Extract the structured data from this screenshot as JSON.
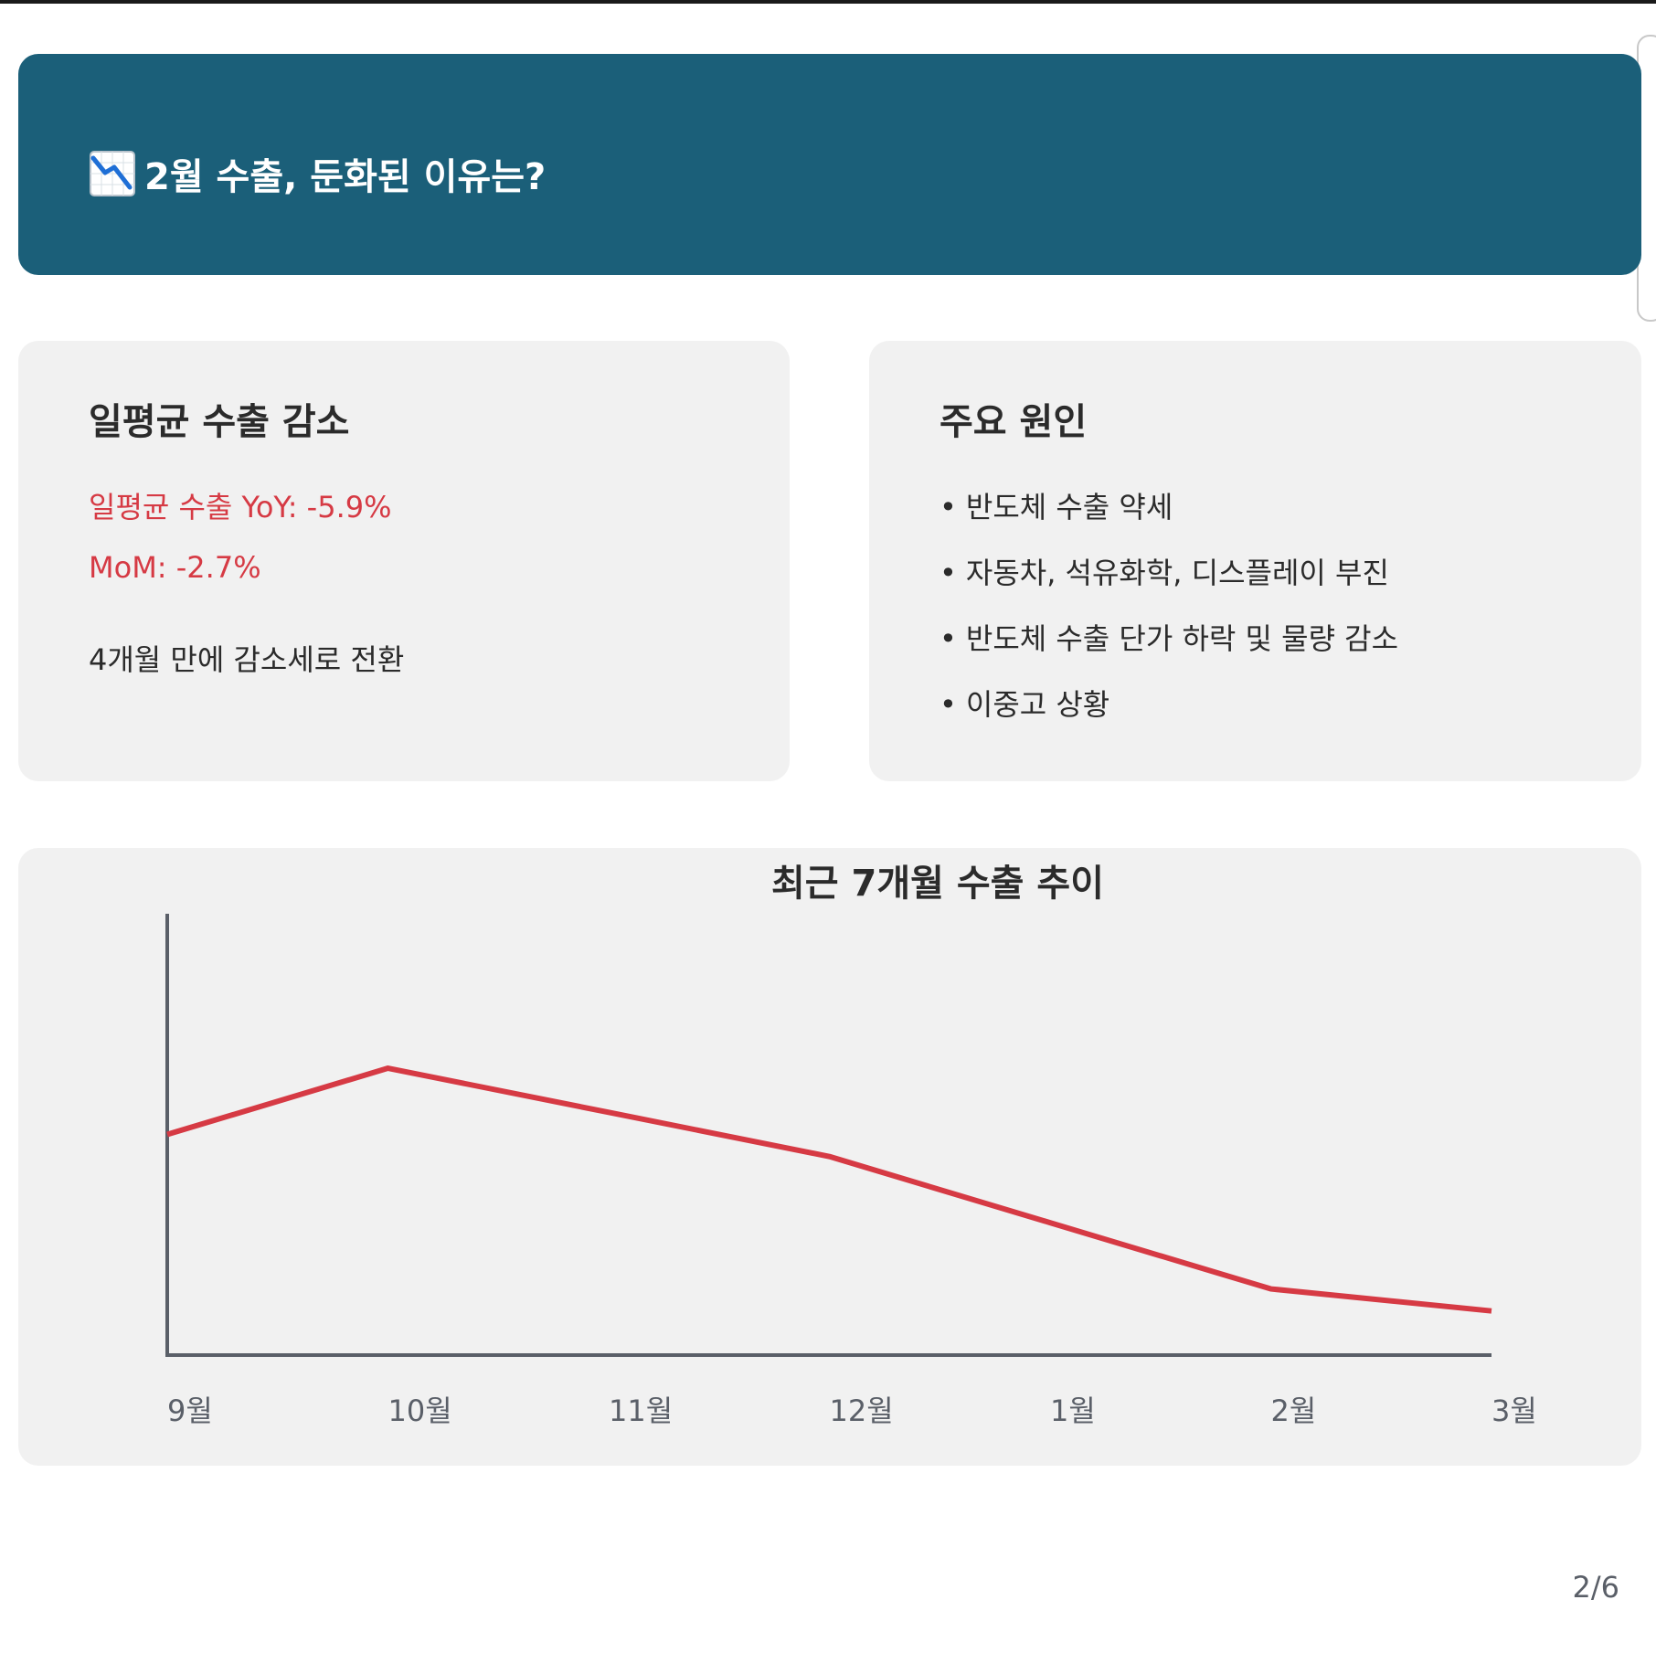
{
  "header": {
    "icon": "chart-decreasing-icon",
    "title": "2월 수출, 둔화된 이유는?"
  },
  "cards": {
    "daily_export": {
      "heading": "일평균 수출 감소",
      "yoy": "일평균 수출 YoY: -5.9%",
      "mom": "MoM: -2.7%",
      "note": "4개월 만에 감소세로 전환"
    },
    "causes": {
      "heading": "주요 원인",
      "bullet": "•",
      "items": [
        "반도체 수출 약세",
        "자동차, 석유화학, 디스플레이 부진",
        "반도체 수출 단가 하락 및 물량 감소",
        "이중고 상황"
      ]
    }
  },
  "chart_data": {
    "type": "line",
    "title": "최근 7개월 수출 추이",
    "categories": [
      "9월",
      "10월",
      "11월",
      "12월",
      "1월",
      "2월",
      "3월"
    ],
    "series": [
      {
        "values": [
          50,
          65,
          55,
          45,
          30,
          15,
          10
        ]
      }
    ],
    "ylim": [
      0,
      100
    ],
    "grid": false,
    "legend": "none",
    "line_color": "#d63a44",
    "axis_color": "#5a5f68"
  },
  "pagination": {
    "text": "2/6"
  },
  "colors": {
    "header_bg": "#1b5f79",
    "card_bg": "#f1f1f1",
    "accent_red": "#d63a44"
  }
}
